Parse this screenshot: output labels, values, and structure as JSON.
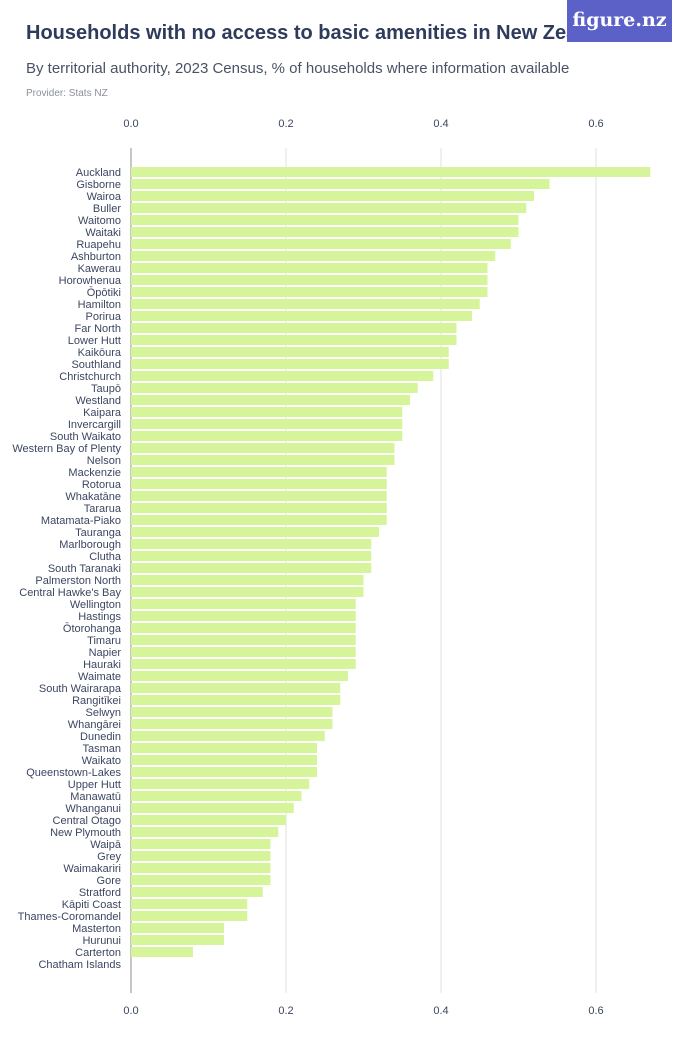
{
  "header": {
    "title": "Households with no access to basic amenities in New Zealand",
    "subtitle": "By territorial authority, 2023 Census, % of households where information available",
    "provider": "Provider: Stats NZ",
    "logo": "figure.nz"
  },
  "colors": {
    "bar": "#d6f59a",
    "grid": "#e2e2e2",
    "axis": "#8c8c8c",
    "logo_bg": "#5b61c6",
    "title": "#2e3b5b"
  },
  "chart_data": {
    "type": "bar",
    "orientation": "horizontal",
    "title": "Households with no access to basic amenities in New Zealand",
    "subtitle": "By territorial authority, 2023 Census, % of households where information available",
    "xlim": [
      0,
      0.7
    ],
    "xticks": [
      0,
      0.2,
      0.4,
      0.6
    ],
    "xtick_labels": [
      "0.0",
      "0.2",
      "0.4",
      "0.6"
    ],
    "grid": true,
    "categories": [
      "Auckland",
      "Gisborne",
      "Wairoa",
      "Buller",
      "Waitomo",
      "Waitaki",
      "Ruapehu",
      "Ashburton",
      "Kawerau",
      "Horowhenua",
      "Ōpōtiki",
      "Hamilton",
      "Porirua",
      "Far North",
      "Lower Hutt",
      "Kaikōura",
      "Southland",
      "Christchurch",
      "Taupō",
      "Westland",
      "Kaipara",
      "Invercargill",
      "South Waikato",
      "Western Bay of Plenty",
      "Nelson",
      "Mackenzie",
      "Rotorua",
      "Whakatāne",
      "Tararua",
      "Matamata-Piako",
      "Tauranga",
      "Marlborough",
      "Clutha",
      "South Taranaki",
      "Palmerston North",
      "Central Hawke's Bay",
      "Wellington",
      "Hastings",
      "Ōtorohanga",
      "Timaru",
      "Napier",
      "Hauraki",
      "Waimate",
      "South Wairarapa",
      "Rangitīkei",
      "Selwyn",
      "Whangārei",
      "Dunedin",
      "Tasman",
      "Waikato",
      "Queenstown-Lakes",
      "Upper Hutt",
      "Manawatū",
      "Whanganui",
      "Central Otago",
      "New Plymouth",
      "Waipā",
      "Grey",
      "Waimakariri",
      "Gore",
      "Stratford",
      "Kāpiti Coast",
      "Thames-Coromandel",
      "Masterton",
      "Hurunui",
      "Carterton",
      "Chatham Islands"
    ],
    "values": [
      0.67,
      0.54,
      0.52,
      0.51,
      0.5,
      0.5,
      0.49,
      0.47,
      0.46,
      0.46,
      0.46,
      0.45,
      0.44,
      0.42,
      0.42,
      0.41,
      0.41,
      0.39,
      0.37,
      0.36,
      0.35,
      0.35,
      0.35,
      0.34,
      0.34,
      0.33,
      0.33,
      0.33,
      0.33,
      0.33,
      0.32,
      0.31,
      0.31,
      0.31,
      0.3,
      0.3,
      0.29,
      0.29,
      0.29,
      0.29,
      0.29,
      0.29,
      0.28,
      0.27,
      0.27,
      0.26,
      0.26,
      0.25,
      0.24,
      0.24,
      0.24,
      0.23,
      0.22,
      0.21,
      0.2,
      0.19,
      0.18,
      0.18,
      0.18,
      0.18,
      0.17,
      0.15,
      0.15,
      0.12,
      0.12,
      0.08,
      0
    ]
  }
}
